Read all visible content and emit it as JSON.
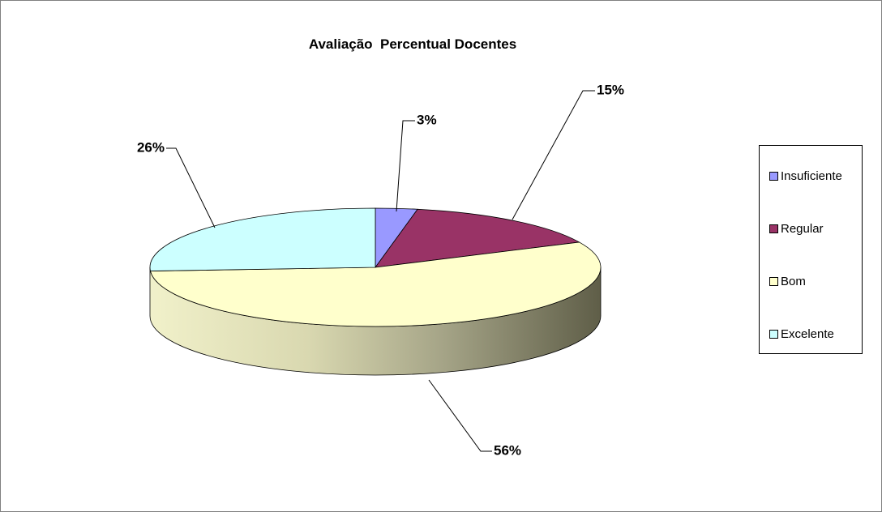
{
  "chart_data": {
    "type": "pie",
    "title": "Avaliação  Percentual Docentes",
    "categories": [
      "Insuficiente",
      "Regular",
      "Bom",
      "Excelente"
    ],
    "values": [
      3,
      15,
      56,
      26
    ],
    "data_labels": [
      "3%",
      "15%",
      "56%",
      "26%"
    ],
    "colors": [
      "#9999ff",
      "#993366",
      "#ffffcc",
      "#ccffff"
    ],
    "legend_position": "right",
    "style": "3d"
  },
  "legend": {
    "items": [
      {
        "label": "Insuficiente",
        "color": "#9999ff"
      },
      {
        "label": "Regular",
        "color": "#993366"
      },
      {
        "label": "Bom",
        "color": "#ffffcc"
      },
      {
        "label": "Excelente",
        "color": "#ccffff"
      }
    ]
  }
}
